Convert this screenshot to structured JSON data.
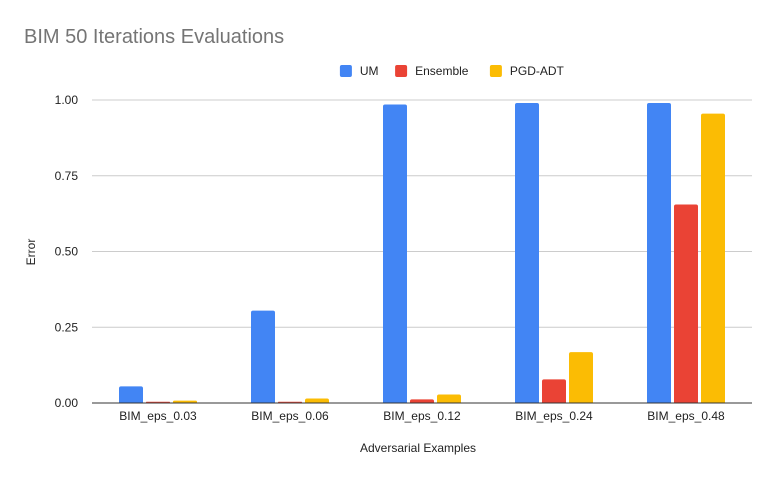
{
  "chart_data": {
    "type": "bar",
    "title": "BIM 50 Iterations Evaluations",
    "xlabel": "Adversarial Examples",
    "ylabel": "Error",
    "categories": [
      "BIM_eps_0.03",
      "BIM_eps_0.06",
      "BIM_eps_0.12",
      "BIM_eps_0.24",
      "BIM_eps_0.48"
    ],
    "series": [
      {
        "name": "UM",
        "color": "#4285f4",
        "values": [
          0.055,
          0.305,
          0.985,
          0.99,
          0.99
        ]
      },
      {
        "name": "Ensemble",
        "color": "#ea4335",
        "values": [
          0.004,
          0.004,
          0.012,
          0.078,
          0.655
        ]
      },
      {
        "name": "PGD-ADT",
        "color": "#fbbc04",
        "values": [
          0.008,
          0.015,
          0.028,
          0.168,
          0.955
        ]
      }
    ],
    "ylim": [
      0,
      1.0
    ],
    "yticks": [
      "0.00",
      "0.25",
      "0.50",
      "0.75",
      "1.00"
    ],
    "grid": true,
    "legend_position": "top-center"
  }
}
